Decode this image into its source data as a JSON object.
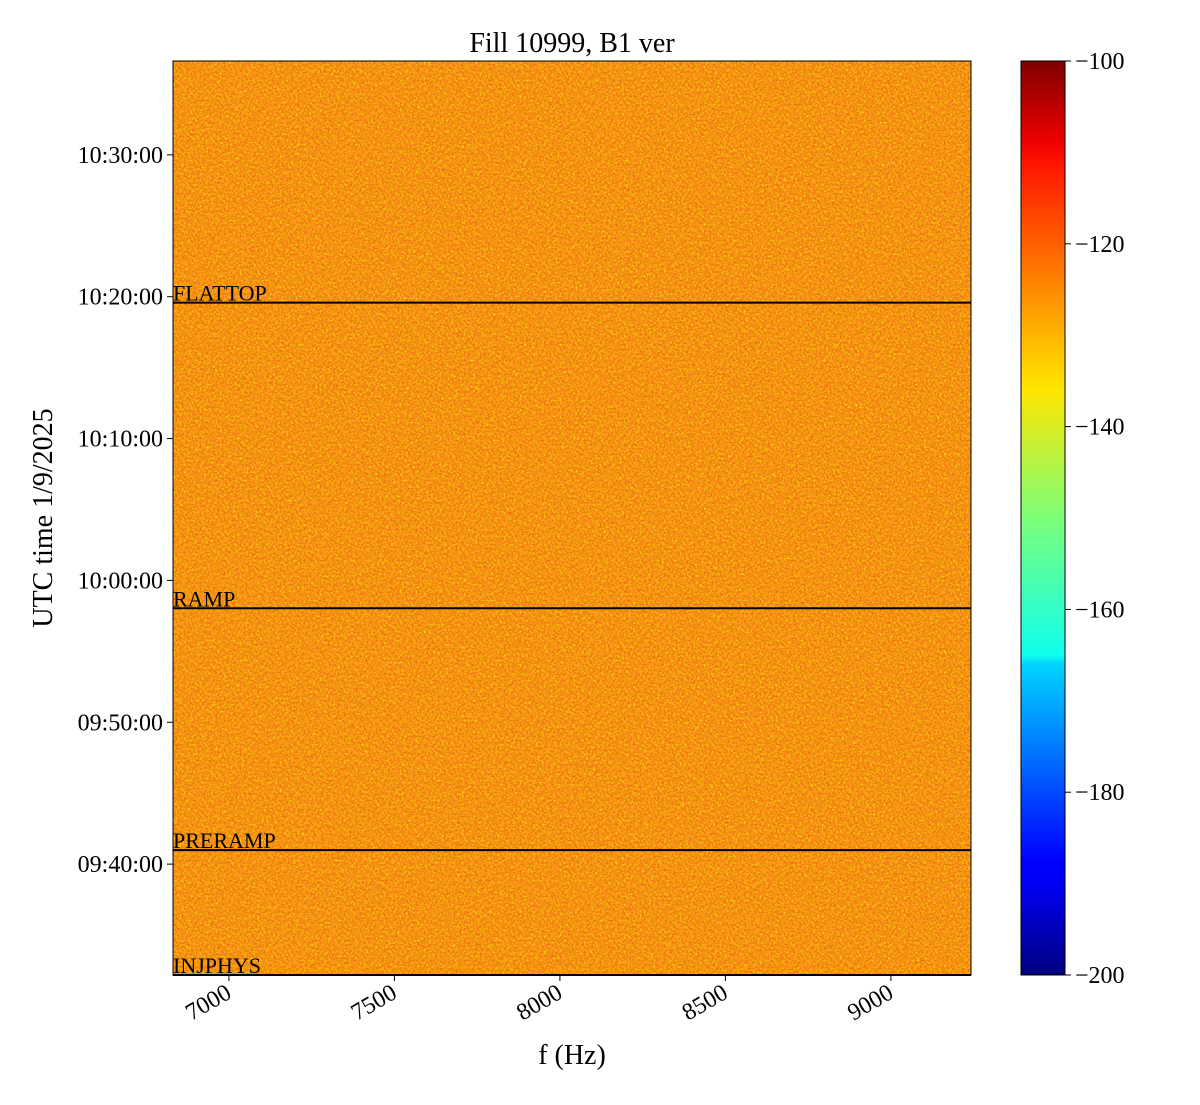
{
  "chart_data": {
    "type": "spectrogram",
    "title": "Fill 10999, B1 ver",
    "xlabel": "f (Hz)",
    "ylabel": "UTC time 1/9/2025",
    "xlim": [
      6831,
      9242
    ],
    "xticks": [
      7000,
      7500,
      8000,
      8500,
      9000
    ],
    "ylim": [
      34331,
      38197
    ],
    "yticks": [
      {
        "value": 34800,
        "label": "09:40:00"
      },
      {
        "value": 35400,
        "label": "09:50:00"
      },
      {
        "value": 36000,
        "label": "10:00:00"
      },
      {
        "value": 36600,
        "label": "10:10:00"
      },
      {
        "value": 37200,
        "label": "10:20:00"
      },
      {
        "value": 37800,
        "label": "10:30:00"
      }
    ],
    "phases": [
      {
        "label": "INJPHYS",
        "time": 34331
      },
      {
        "label": "PRERAMP",
        "time": 34859
      },
      {
        "label": "RAMP",
        "time": 35882
      },
      {
        "label": "FLATTOP",
        "time": 37175
      }
    ],
    "colormap": "jet",
    "clim": [
      -200,
      -100
    ],
    "cticks": [
      {
        "value": -200,
        "label": "−200"
      },
      {
        "value": -180,
        "label": "−180"
      },
      {
        "value": -160,
        "label": "−160"
      },
      {
        "value": -140,
        "label": "−140"
      },
      {
        "value": -120,
        "label": "−120"
      },
      {
        "value": -100,
        "label": "−100"
      }
    ]
  }
}
